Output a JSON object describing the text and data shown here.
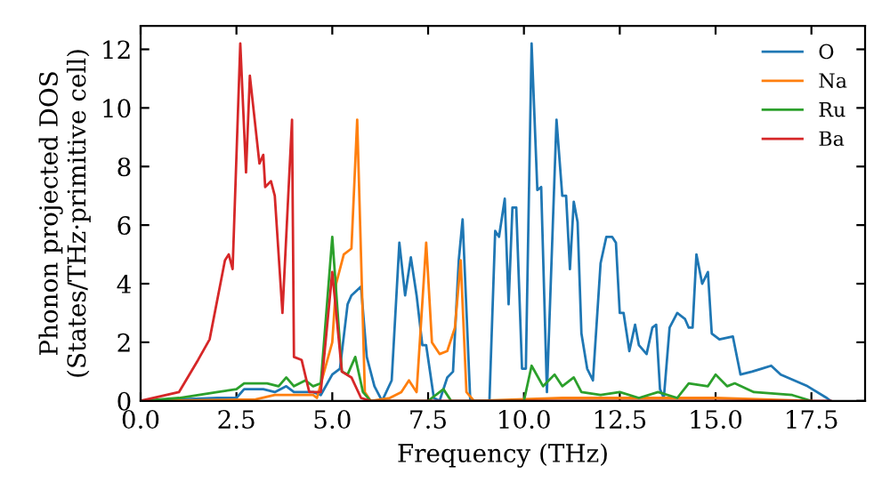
{
  "chart_data": {
    "type": "line",
    "xlabel": "Frequency (THz)",
    "ylabel": "Phonon projected DOS\n(States/THz·primitive cell)",
    "xlim": [
      0,
      18.9
    ],
    "ylim": [
      0,
      12.8
    ],
    "xticks": [
      {
        "value": 0,
        "label": "0.0"
      },
      {
        "value": 2.5,
        "label": "2.5"
      },
      {
        "value": 5,
        "label": "5.0"
      },
      {
        "value": 7.5,
        "label": "7.5"
      },
      {
        "value": 10,
        "label": "10.0"
      },
      {
        "value": 12.5,
        "label": "12.5"
      },
      {
        "value": 15,
        "label": "15.0"
      },
      {
        "value": 17.5,
        "label": "17.5"
      }
    ],
    "yticks": [
      0,
      2,
      4,
      6,
      8,
      10,
      12
    ],
    "grid": false,
    "legend": "top right",
    "marker": "none",
    "line_style": "solid",
    "series": [
      {
        "name": "O",
        "color": "#1f77b4",
        "x": [
          0,
          2.0,
          2.5,
          2.7,
          3.2,
          3.5,
          3.8,
          4.0,
          4.5,
          4.7,
          5.0,
          5.2,
          5.4,
          5.5,
          5.75,
          5.9,
          6.1,
          6.3,
          6.55,
          6.75,
          6.9,
          7.05,
          7.2,
          7.35,
          7.45,
          7.65,
          7.8,
          8.0,
          8.15,
          8.3,
          8.4,
          8.6,
          9.1,
          9.25,
          9.35,
          9.5,
          9.6,
          9.7,
          9.8,
          9.95,
          10.05,
          10.2,
          10.35,
          10.45,
          10.6,
          10.85,
          11.0,
          11.1,
          11.2,
          11.3,
          11.4,
          11.5,
          11.65,
          11.8,
          12.0,
          12.15,
          12.3,
          12.4,
          12.5,
          12.6,
          12.75,
          12.9,
          13.0,
          13.2,
          13.35,
          13.45,
          13.55,
          13.65,
          13.8,
          14.0,
          14.2,
          14.3,
          14.4,
          14.5,
          14.65,
          14.8,
          14.9,
          15.1,
          15.45,
          15.65,
          15.95,
          16.2,
          16.45,
          16.7,
          17.4,
          17.9,
          18.0
        ],
        "values": [
          0,
          0.1,
          0.1,
          0.4,
          0.4,
          0.3,
          0.5,
          0.3,
          0.3,
          0.2,
          0.9,
          1.1,
          3.3,
          3.6,
          3.9,
          1.5,
          0.5,
          0,
          0.7,
          5.4,
          3.6,
          4.9,
          3.6,
          1.9,
          1.9,
          0.1,
          0,
          0.8,
          1.0,
          4.8,
          6.2,
          0,
          0,
          5.8,
          5.6,
          6.9,
          3.3,
          6.6,
          6.6,
          1.1,
          1.1,
          12.2,
          7.2,
          7.3,
          0.3,
          9.6,
          7.0,
          7.0,
          4.5,
          6.8,
          6.1,
          2.3,
          1.1,
          0.7,
          4.7,
          5.6,
          5.6,
          5.4,
          3.0,
          3.0,
          1.7,
          2.6,
          1.9,
          1.6,
          2.5,
          2.6,
          0.4,
          0.1,
          2.5,
          3.0,
          2.8,
          2.5,
          2.5,
          5.0,
          4.0,
          4.4,
          2.3,
          2.1,
          2.2,
          0.9,
          1.0,
          1.1,
          1.2,
          0.9,
          0.5,
          0.1,
          0
        ]
      },
      {
        "name": "Na",
        "color": "#ff7f0e",
        "x": [
          0,
          3.0,
          3.5,
          4.5,
          4.6,
          5.0,
          5.1,
          5.3,
          5.5,
          5.65,
          5.85,
          6.0,
          6.5,
          6.8,
          7.0,
          7.2,
          7.45,
          7.6,
          7.8,
          8.0,
          8.2,
          8.35,
          8.5,
          8.7,
          11.0,
          12.3,
          15.0,
          17.5
        ],
        "values": [
          0,
          0.05,
          0.2,
          0.2,
          0.1,
          2.0,
          4.0,
          5.0,
          5.2,
          9.6,
          0.3,
          0,
          0.1,
          0.3,
          0.7,
          0.3,
          5.4,
          2.0,
          1.6,
          1.7,
          2.5,
          4.8,
          0.3,
          0,
          0.1,
          0.1,
          0.1,
          0
        ]
      },
      {
        "name": "Ru",
        "color": "#2ca02c",
        "x": [
          0,
          1.0,
          2.0,
          2.5,
          2.7,
          3.3,
          3.6,
          3.8,
          4.0,
          4.3,
          4.5,
          4.7,
          5.0,
          5.25,
          5.4,
          5.6,
          5.8,
          6.0,
          7.5,
          7.9,
          8.1,
          10.0,
          10.2,
          10.5,
          10.8,
          11.0,
          11.3,
          11.5,
          12.0,
          12.5,
          13.0,
          13.5,
          14.0,
          14.3,
          14.8,
          15.0,
          15.3,
          15.5,
          16.0,
          17.0,
          17.5
        ],
        "values": [
          0,
          0.1,
          0.3,
          0.4,
          0.6,
          0.6,
          0.5,
          0.8,
          0.5,
          0.7,
          0.5,
          0.6,
          5.6,
          1.0,
          0.9,
          1.5,
          0.3,
          0,
          0,
          0.4,
          0,
          0,
          1.2,
          0.5,
          0.9,
          0.5,
          0.8,
          0.3,
          0.2,
          0.3,
          0.1,
          0.3,
          0.1,
          0.6,
          0.5,
          0.9,
          0.5,
          0.6,
          0.3,
          0.2,
          0
        ]
      },
      {
        "name": "Ba",
        "color": "#d62728",
        "x": [
          0,
          1.0,
          1.5,
          1.8,
          2.2,
          2.3,
          2.4,
          2.6,
          2.75,
          2.85,
          2.95,
          3.1,
          3.2,
          3.25,
          3.4,
          3.5,
          3.7,
          3.95,
          4.0,
          4.2,
          4.4,
          4.7,
          5.0,
          5.25,
          5.5,
          5.75,
          6.0,
          18.0
        ],
        "values": [
          0,
          0.3,
          1.4,
          2.1,
          4.8,
          5.0,
          4.5,
          12.2,
          7.8,
          11.1,
          9.9,
          8.1,
          8.4,
          7.3,
          7.5,
          7.0,
          3.0,
          9.6,
          1.5,
          1.4,
          0.3,
          0.3,
          4.4,
          1.0,
          0.8,
          0.1,
          0,
          0
        ]
      }
    ]
  }
}
